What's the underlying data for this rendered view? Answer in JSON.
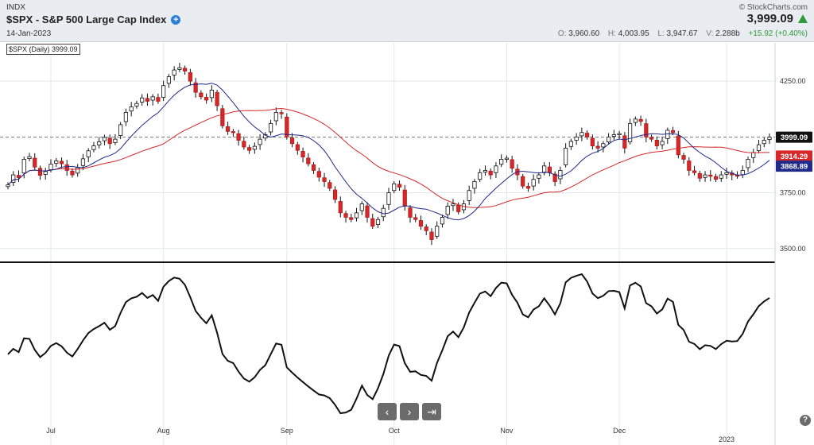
{
  "header": {
    "exchange": "INDX",
    "title": "$SPX - S&P 500 Large Cap Index",
    "date": "14-Jan-2023",
    "brand": "© StockCharts.com",
    "last_price": "3,999.09",
    "ohlc": {
      "o_label": "O:",
      "o": "3,960.60",
      "h_label": "H:",
      "h": "4,003.95",
      "l_label": "L:",
      "l": "3,947.67",
      "v_label": "V:",
      "v": "2.288b",
      "change": "+15.92 (+0.40%)"
    },
    "colors": {
      "up": "#2e9a3a",
      "down": "#d62828",
      "accent": "#2b7fd9"
    }
  },
  "legend_label": "$SPX (Daily) 3999.09",
  "chart_data": {
    "type": "line",
    "title": "$SPX - S&P 500 Large Cap Index",
    "price_axis": {
      "ticks": [
        3500,
        3750,
        4250
      ],
      "tick_labels": [
        "3500.00",
        "3750.00",
        "4250.00"
      ],
      "ylim": [
        3460,
        4400
      ],
      "grid": true
    },
    "x_tick_labels": [
      "Jul",
      "Aug",
      "Sep",
      "Oct",
      "Nov",
      "Dec",
      "2023"
    ],
    "reference_line": {
      "value": 3999.09,
      "style": "dashed"
    },
    "price_labels": [
      {
        "text": "3999.09",
        "value": 3999.09,
        "color": "#111111"
      },
      {
        "text": "3914.29",
        "value": 3914.29,
        "color": "#d62828"
      },
      {
        "text": "3868.89",
        "value": 3868.89,
        "color": "#1f2a8a"
      }
    ],
    "colors": {
      "ma_slow": "#d62828",
      "ma_fast": "#1f2a8a",
      "up_candle": "#ffffff",
      "down_candle": "#d62828",
      "indicator": "#111111"
    },
    "closes": [
      3785,
      3830,
      3818,
      3900,
      3912,
      3865,
      3828,
      3845,
      3878,
      3893,
      3880,
      3850,
      3830,
      3862,
      3902,
      3938,
      3960,
      3978,
      3998,
      3970,
      3990,
      4055,
      4110,
      4135,
      4150,
      4175,
      4160,
      4180,
      4160,
      4230,
      4270,
      4300,
      4310,
      4295,
      4250,
      4200,
      4180,
      4165,
      4210,
      4140,
      4050,
      4025,
      4020,
      3985,
      3955,
      3940,
      3958,
      3990,
      4010,
      4060,
      4110,
      4105,
      4000,
      3970,
      3940,
      3910,
      3880,
      3850,
      3820,
      3800,
      3770,
      3720,
      3660,
      3640,
      3630,
      3660,
      3700,
      3640,
      3600,
      3630,
      3680,
      3750,
      3790,
      3775,
      3690,
      3640,
      3630,
      3600,
      3580,
      3540,
      3600,
      3640,
      3690,
      3700,
      3665,
      3700,
      3760,
      3800,
      3840,
      3850,
      3830,
      3870,
      3900,
      3905,
      3860,
      3830,
      3780,
      3770,
      3810,
      3830,
      3870,
      3840,
      3800,
      3850,
      3950,
      3980,
      4000,
      4020,
      4000,
      3960,
      3950,
      3970,
      4000,
      4010,
      4015,
      3950,
      4060,
      4080,
      4070,
      4000,
      3990,
      3960,
      3980,
      4030,
      4020,
      3920,
      3900,
      3850,
      3840,
      3815,
      3830,
      3825,
      3810,
      3830,
      3840,
      3830,
      3825,
      3850,
      3900,
      3930,
      3965,
      3985,
      3999
    ]
  }
}
